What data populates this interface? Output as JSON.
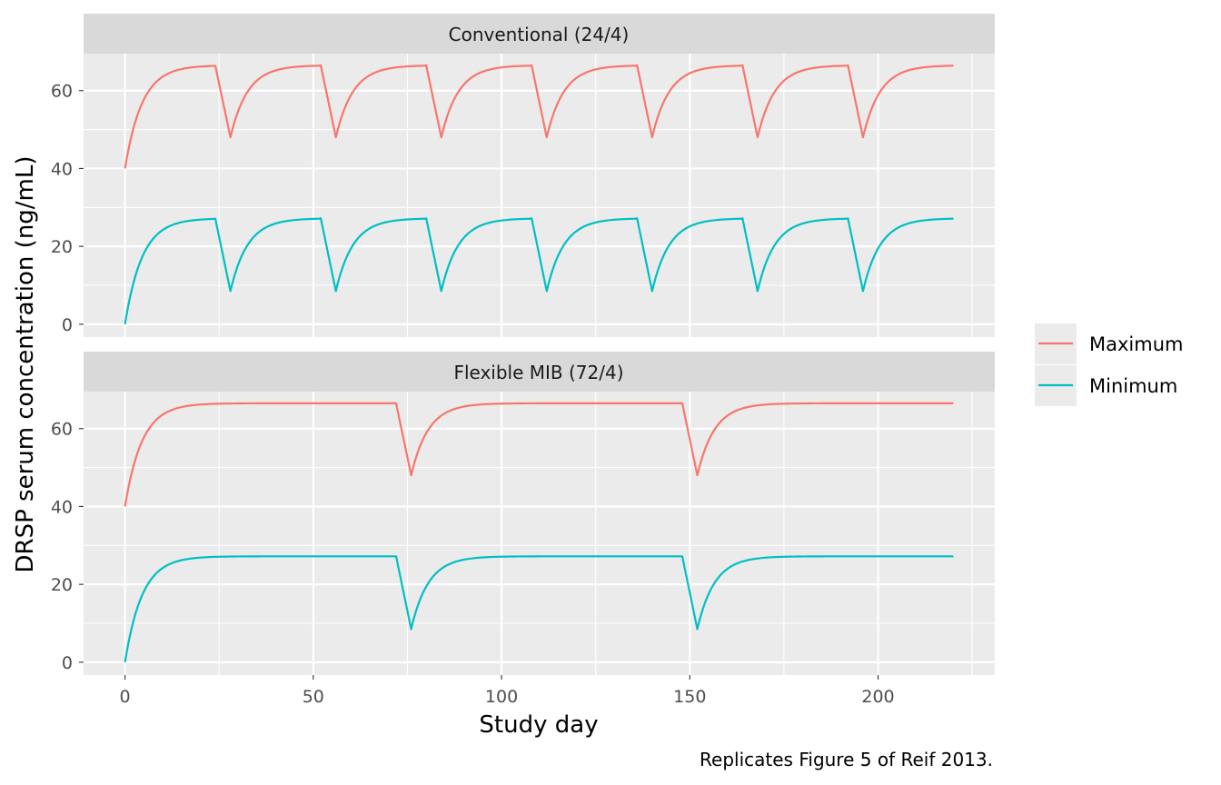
{
  "chart_data": {
    "type": "line",
    "xlabel": "Study day",
    "ylabel": "DRSP serum concentration (ng/mL)",
    "caption": "Replicates Figure 5 of Reif 2013.",
    "xlim": [
      -11,
      231
    ],
    "ylim": [
      -3.3,
      69.5
    ],
    "x_ticks": [
      0,
      50,
      100,
      150,
      200
    ],
    "y_ticks": [
      0,
      20,
      40,
      60
    ],
    "grid": true,
    "legend_position": "right",
    "series": [
      {
        "name": "Maximum",
        "color": "#F8766D"
      },
      {
        "name": "Minimum",
        "color": "#00BFC4"
      }
    ],
    "panels": [
      {
        "strip": "Conventional (24/4)",
        "on_days": 24,
        "off_days": 4,
        "curves": [
          {
            "series": "Maximum",
            "start": 40,
            "plateau": 66.5,
            "trough": 48,
            "x_end": 220
          },
          {
            "series": "Minimum",
            "start": 0,
            "plateau": 27.2,
            "trough": 8.5,
            "x_end": 220
          }
        ]
      },
      {
        "strip": "Flexible MIB (72/4)",
        "on_days": 72,
        "off_days": 4,
        "curves": [
          {
            "series": "Maximum",
            "start": 40,
            "plateau": 66.5,
            "trough": 48,
            "x_end": 220
          },
          {
            "series": "Minimum",
            "start": 0,
            "plateau": 27.2,
            "trough": 8.5,
            "x_end": 220
          }
        ]
      }
    ]
  }
}
